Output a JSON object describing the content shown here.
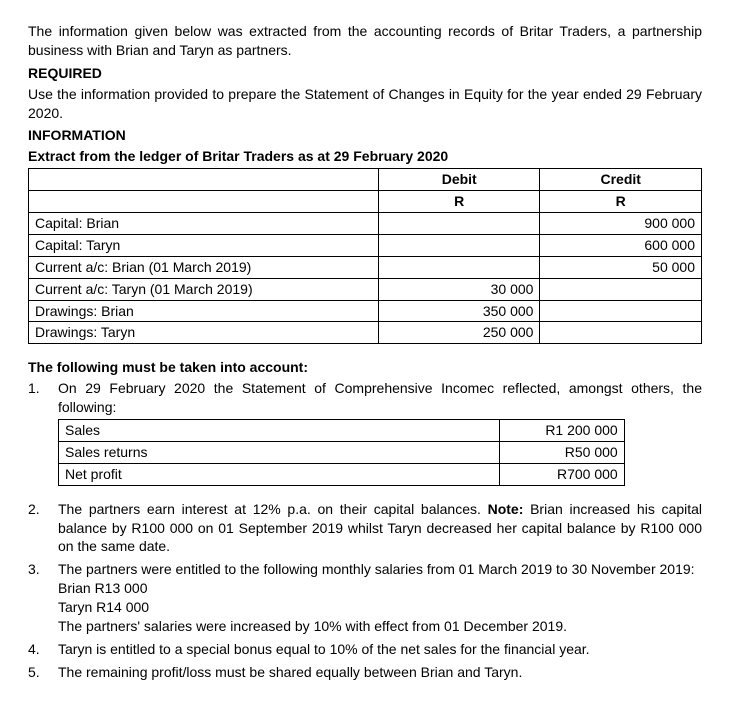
{
  "intro": "The information given below was extracted from the accounting records of Britar Traders, a partnership business with Brian and Taryn as partners.",
  "required_heading": "REQUIRED",
  "required_text": "Use the information provided to prepare the Statement of Changes in Equity for the year ended 29 February 2020.",
  "info_heading": "INFORMATION",
  "ledger_heading": "Extract from the ledger of Britar Traders as at 29 February 2020",
  "ledger_table": {
    "headers": {
      "debit": "Debit",
      "credit": "Credit",
      "unit": "R"
    },
    "rows": [
      {
        "account": "Capital: Brian",
        "debit": "",
        "credit": "900 000"
      },
      {
        "account": "Capital: Taryn",
        "debit": "",
        "credit": "600 000"
      },
      {
        "account": "Current a/c: Brian (01 March 2019)",
        "debit": "",
        "credit": "50 000"
      },
      {
        "account": "Current a/c: Taryn (01 March 2019)",
        "debit": "30 000",
        "credit": ""
      },
      {
        "account": "Drawings: Brian",
        "debit": "350 000",
        "credit": ""
      },
      {
        "account": "Drawings: Taryn",
        "debit": "250 000",
        "credit": ""
      }
    ]
  },
  "account_heading": "The following must be taken into account:",
  "notes": {
    "n1": {
      "num": "1.",
      "text": "On 29 February 2020 the Statement of Comprehensive Incomec reflected, amongst others, the following:",
      "table": [
        {
          "label": "Sales",
          "amount": "R1 200 000"
        },
        {
          "label": "Sales returns",
          "amount": "R50 000"
        },
        {
          "label": "Net profit",
          "amount": "R700 000"
        }
      ]
    },
    "n2": {
      "num": "2.",
      "text_a": "The partners earn interest at 12% p.a. on their capital balances.  ",
      "note_label": "Note:",
      "text_b": "  Brian increased his capital balance by R100 000 on 01 September 2019 whilst Taryn decreased her capital balance by R100 000 on the same date."
    },
    "n3": {
      "num": "3.",
      "text": "The partners were entitled to the following monthly salaries from 01 March 2019 to 30 November 2019:",
      "brian": "Brian  R13 000",
      "taryn": "Taryn  R14 000",
      "increase": "The partners' salaries were increased by 10% with effect from 01 December 2019."
    },
    "n4": {
      "num": "4.",
      "text": "Taryn is entitled to a special bonus equal to 10% of the net sales for the financial year."
    },
    "n5": {
      "num": "5.",
      "text": "The remaining profit/loss must be shared equally between Brian and Taryn."
    }
  }
}
